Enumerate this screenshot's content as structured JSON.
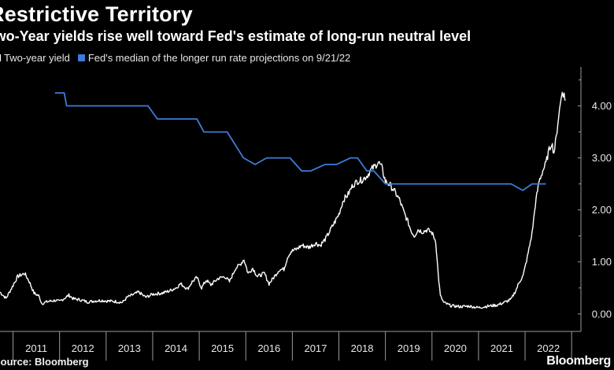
{
  "header": {
    "title": "Restrictive Territory",
    "subtitle": "Two-Year yields rise well toward Fed's estimate of long-run neutral level"
  },
  "footer": {
    "source": "Source: Bloomberg",
    "brand": "Bloomberg"
  },
  "colors": {
    "background": "#000000",
    "yield_line": "#ffffff",
    "fed_line": "#3b7dd8",
    "axis": "#9a9a9a"
  },
  "chart_data": {
    "type": "line",
    "title": "Restrictive Territory",
    "subtitle": "Two-Year yields rise well toward Fed's estimate of long-run neutral level",
    "xlabel": "",
    "ylabel": "",
    "xlim": [
      2010.72,
      2023.2
    ],
    "ylim": [
      -0.2,
      4.75
    ],
    "legend_position": "top-left",
    "x_ticks": [
      "2011",
      "2012",
      "2013",
      "2014",
      "2015",
      "2016",
      "2017",
      "2018",
      "2019",
      "2020",
      "2021",
      "2022"
    ],
    "y_ticks": [
      "0.00",
      "1.00",
      "2.00",
      "3.00",
      "4.00"
    ],
    "series": [
      {
        "name": "Two-year yield",
        "color": "#ffffff",
        "points": [
          [
            2010.72,
            0.42
          ],
          [
            2010.85,
            0.3
          ],
          [
            2011.0,
            0.55
          ],
          [
            2011.1,
            0.72
          ],
          [
            2011.25,
            0.78
          ],
          [
            2011.35,
            0.62
          ],
          [
            2011.45,
            0.4
          ],
          [
            2011.55,
            0.35
          ],
          [
            2011.62,
            0.2
          ],
          [
            2011.75,
            0.24
          ],
          [
            2011.9,
            0.26
          ],
          [
            2012.0,
            0.24
          ],
          [
            2012.1,
            0.3
          ],
          [
            2012.2,
            0.36
          ],
          [
            2012.3,
            0.29
          ],
          [
            2012.45,
            0.27
          ],
          [
            2012.6,
            0.23
          ],
          [
            2012.75,
            0.25
          ],
          [
            2012.9,
            0.26
          ],
          [
            2013.0,
            0.25
          ],
          [
            2013.2,
            0.24
          ],
          [
            2013.35,
            0.22
          ],
          [
            2013.45,
            0.32
          ],
          [
            2013.55,
            0.36
          ],
          [
            2013.7,
            0.42
          ],
          [
            2013.85,
            0.32
          ],
          [
            2014.0,
            0.38
          ],
          [
            2014.2,
            0.4
          ],
          [
            2014.35,
            0.44
          ],
          [
            2014.5,
            0.5
          ],
          [
            2014.6,
            0.58
          ],
          [
            2014.75,
            0.48
          ],
          [
            2014.85,
            0.62
          ],
          [
            2014.95,
            0.7
          ],
          [
            2015.05,
            0.5
          ],
          [
            2015.15,
            0.65
          ],
          [
            2015.25,
            0.56
          ],
          [
            2015.4,
            0.68
          ],
          [
            2015.55,
            0.72
          ],
          [
            2015.65,
            0.62
          ],
          [
            2015.78,
            0.88
          ],
          [
            2015.88,
            0.95
          ],
          [
            2015.96,
            1.05
          ],
          [
            2016.05,
            0.78
          ],
          [
            2016.15,
            0.88
          ],
          [
            2016.25,
            0.72
          ],
          [
            2016.4,
            0.78
          ],
          [
            2016.5,
            0.58
          ],
          [
            2016.6,
            0.7
          ],
          [
            2016.72,
            0.85
          ],
          [
            2016.82,
            0.86
          ],
          [
            2016.9,
            1.1
          ],
          [
            2016.97,
            1.2
          ],
          [
            2017.1,
            1.25
          ],
          [
            2017.2,
            1.32
          ],
          [
            2017.35,
            1.28
          ],
          [
            2017.5,
            1.36
          ],
          [
            2017.6,
            1.32
          ],
          [
            2017.72,
            1.45
          ],
          [
            2017.82,
            1.62
          ],
          [
            2017.92,
            1.78
          ],
          [
            2018.0,
            1.92
          ],
          [
            2018.1,
            2.2
          ],
          [
            2018.2,
            2.3
          ],
          [
            2018.3,
            2.48
          ],
          [
            2018.4,
            2.55
          ],
          [
            2018.5,
            2.58
          ],
          [
            2018.6,
            2.65
          ],
          [
            2018.7,
            2.78
          ],
          [
            2018.78,
            2.85
          ],
          [
            2018.85,
            2.92
          ],
          [
            2018.92,
            2.82
          ],
          [
            2019.0,
            2.55
          ],
          [
            2019.1,
            2.48
          ],
          [
            2019.2,
            2.35
          ],
          [
            2019.3,
            2.2
          ],
          [
            2019.4,
            1.95
          ],
          [
            2019.48,
            1.78
          ],
          [
            2019.55,
            1.6
          ],
          [
            2019.62,
            1.5
          ],
          [
            2019.7,
            1.62
          ],
          [
            2019.8,
            1.58
          ],
          [
            2019.9,
            1.62
          ],
          [
            2020.0,
            1.56
          ],
          [
            2020.08,
            1.4
          ],
          [
            2020.13,
            0.8
          ],
          [
            2020.18,
            0.35
          ],
          [
            2020.25,
            0.22
          ],
          [
            2020.4,
            0.16
          ],
          [
            2020.6,
            0.14
          ],
          [
            2020.8,
            0.15
          ],
          [
            2021.0,
            0.12
          ],
          [
            2021.2,
            0.15
          ],
          [
            2021.4,
            0.17
          ],
          [
            2021.55,
            0.22
          ],
          [
            2021.7,
            0.28
          ],
          [
            2021.8,
            0.45
          ],
          [
            2021.88,
            0.62
          ],
          [
            2021.96,
            0.74
          ],
          [
            2022.05,
            1.1
          ],
          [
            2022.15,
            1.55
          ],
          [
            2022.22,
            2.1
          ],
          [
            2022.3,
            2.55
          ],
          [
            2022.38,
            2.75
          ],
          [
            2022.45,
            2.9
          ],
          [
            2022.5,
            3.1
          ],
          [
            2022.57,
            3.3
          ],
          [
            2022.62,
            3.1
          ],
          [
            2022.67,
            3.4
          ],
          [
            2022.72,
            3.8
          ],
          [
            2022.76,
            4.05
          ],
          [
            2022.8,
            4.3
          ],
          [
            2022.84,
            4.2
          ],
          [
            2022.86,
            4.1
          ]
        ]
      },
      {
        "name": "Fed's median of the longer run rate projections on 9/21/22",
        "color": "#3b7dd8",
        "points": [
          [
            2011.9,
            4.25
          ],
          [
            2012.1,
            4.25
          ],
          [
            2012.15,
            4.0
          ],
          [
            2013.1,
            4.0
          ],
          [
            2013.6,
            4.0
          ],
          [
            2013.9,
            4.0
          ],
          [
            2014.1,
            3.75
          ],
          [
            2014.35,
            3.75
          ],
          [
            2014.95,
            3.75
          ],
          [
            2015.1,
            3.5
          ],
          [
            2015.25,
            3.5
          ],
          [
            2015.6,
            3.5
          ],
          [
            2015.95,
            3.0
          ],
          [
            2016.2,
            2.875
          ],
          [
            2016.45,
            3.0
          ],
          [
            2016.95,
            3.0
          ],
          [
            2017.2,
            2.75
          ],
          [
            2017.4,
            2.75
          ],
          [
            2017.7,
            2.875
          ],
          [
            2017.95,
            2.875
          ],
          [
            2018.25,
            3.0
          ],
          [
            2018.4,
            3.0
          ],
          [
            2018.6,
            2.75
          ],
          [
            2018.75,
            2.75
          ],
          [
            2019.0,
            2.5
          ],
          [
            2019.25,
            2.5
          ],
          [
            2021.4,
            2.5
          ],
          [
            2021.7,
            2.5
          ],
          [
            2021.95,
            2.375
          ],
          [
            2022.15,
            2.5
          ],
          [
            2022.45,
            2.5
          ]
        ]
      }
    ]
  }
}
